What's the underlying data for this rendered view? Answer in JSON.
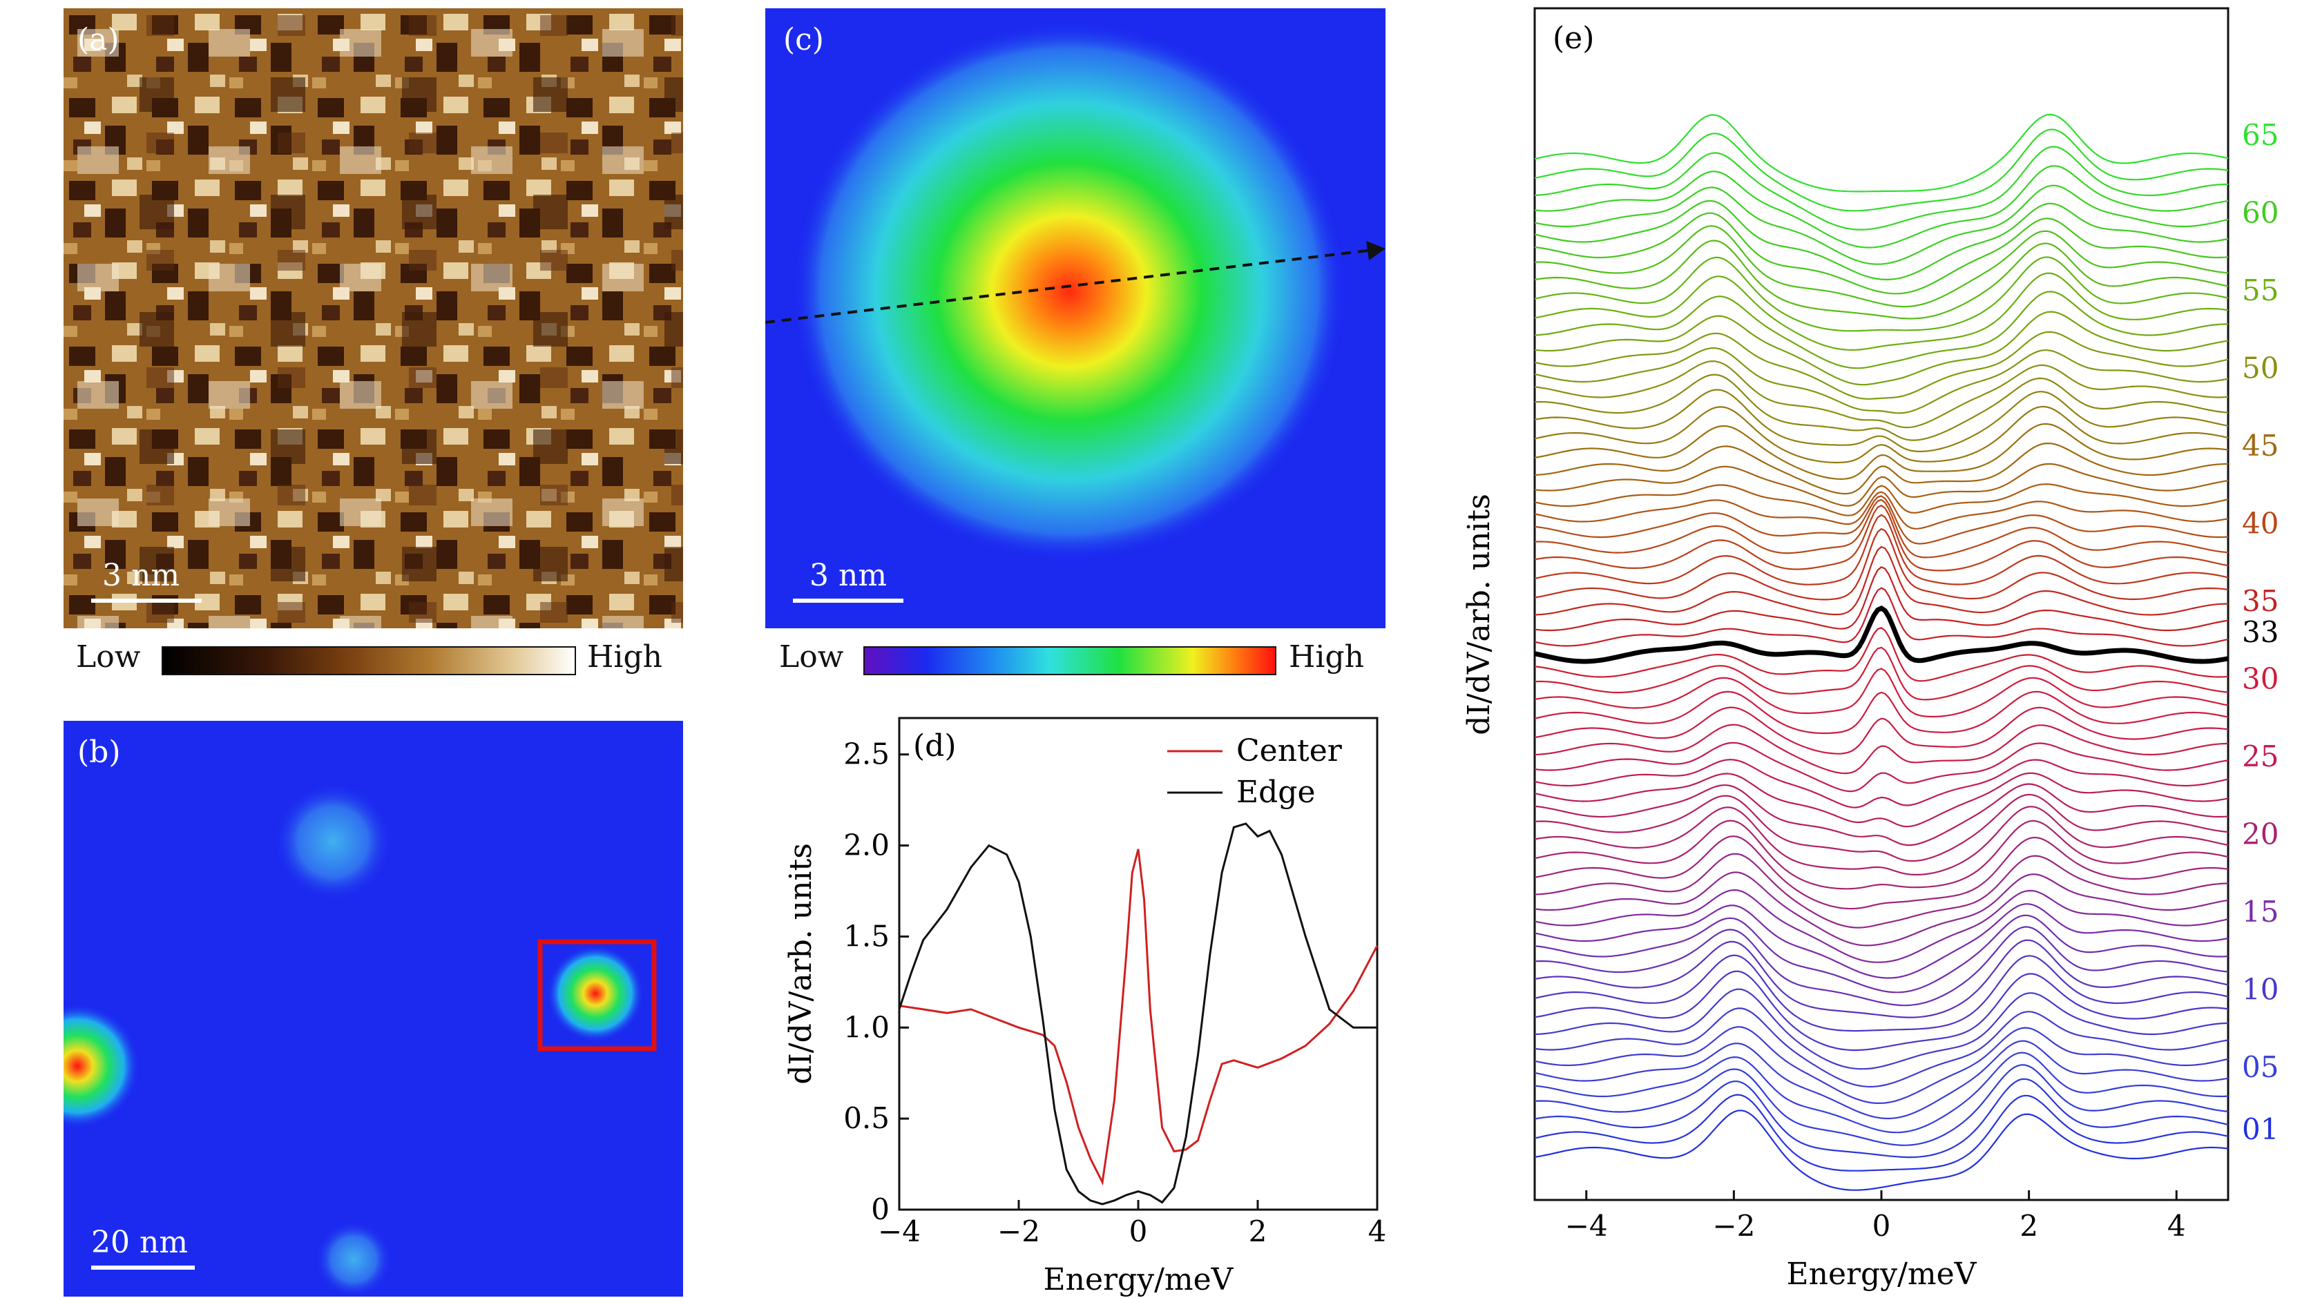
{
  "panels": {
    "a": {
      "label": "(a)",
      "scalebar": "3 nm",
      "colorbar": {
        "low": "Low",
        "high": "High"
      }
    },
    "b": {
      "label": "(b)",
      "scalebar": "20 nm"
    },
    "c": {
      "label": "(c)",
      "scalebar": "3 nm",
      "colorbar": {
        "low": "Low",
        "high": "High"
      }
    }
  },
  "colors": {
    "topo_dark": "#3a1a08",
    "topo_mid": "#9a6424",
    "topo_light": "#f2e4c8",
    "map_blue": "#1c2af0",
    "box_red": "#e01010",
    "center_line": "#d02020",
    "edge_line": "#111111"
  },
  "chart_data": [
    {
      "id": "d",
      "type": "line",
      "label": "(d)",
      "xlabel": "Energy/meV",
      "ylabel": "dI/dV/arb. units",
      "xlim": [
        -4,
        4
      ],
      "ylim": [
        0,
        2.7
      ],
      "xticks": [
        "−4",
        "−2",
        "0",
        "2",
        "4"
      ],
      "yticks": [
        "0",
        "0.5",
        "1.0",
        "1.5",
        "2.0",
        "2.5"
      ],
      "legend_position": "top-right",
      "series": [
        {
          "name": "Center",
          "color": "#d02020",
          "x": [
            -4,
            -3.6,
            -3.2,
            -2.8,
            -2.4,
            -2.0,
            -1.6,
            -1.4,
            -1.2,
            -1.0,
            -0.8,
            -0.6,
            -0.4,
            -0.2,
            -0.1,
            0,
            0.1,
            0.2,
            0.4,
            0.6,
            0.8,
            1.0,
            1.2,
            1.4,
            1.6,
            2.0,
            2.4,
            2.8,
            3.2,
            3.6,
            4.0
          ],
          "y": [
            1.12,
            1.1,
            1.08,
            1.1,
            1.05,
            1.0,
            0.96,
            0.9,
            0.7,
            0.45,
            0.28,
            0.15,
            0.6,
            1.4,
            1.85,
            1.98,
            1.7,
            1.1,
            0.45,
            0.32,
            0.33,
            0.38,
            0.6,
            0.8,
            0.82,
            0.78,
            0.83,
            0.9,
            1.02,
            1.2,
            1.45
          ]
        },
        {
          "name": "Edge",
          "color": "#111111",
          "x": [
            -4,
            -3.8,
            -3.6,
            -3.2,
            -2.8,
            -2.5,
            -2.2,
            -2.0,
            -1.8,
            -1.6,
            -1.4,
            -1.2,
            -1.0,
            -0.8,
            -0.6,
            -0.4,
            -0.2,
            0,
            0.2,
            0.4,
            0.6,
            0.8,
            1.0,
            1.2,
            1.4,
            1.6,
            1.8,
            2.0,
            2.2,
            2.4,
            2.8,
            3.2,
            3.6,
            4.0
          ],
          "y": [
            1.1,
            1.3,
            1.48,
            1.65,
            1.88,
            2.0,
            1.95,
            1.8,
            1.5,
            1.05,
            0.55,
            0.22,
            0.1,
            0.05,
            0.03,
            0.05,
            0.08,
            0.1,
            0.08,
            0.04,
            0.12,
            0.4,
            0.85,
            1.4,
            1.85,
            2.1,
            2.12,
            2.05,
            2.08,
            1.95,
            1.5,
            1.1,
            1.0,
            1.0
          ]
        }
      ]
    },
    {
      "id": "e",
      "type": "line",
      "label": "(e)",
      "xlabel": "Energy/meV",
      "ylabel": "dI/dV/arb. units",
      "xlim": [
        -4.7,
        4.7
      ],
      "xticks": [
        "−4",
        "−2",
        "0",
        "2",
        "4"
      ],
      "curve_count": 65,
      "highlighted_curve": 33,
      "curve_labels": [
        {
          "text": "01",
          "index": 1,
          "color": "#2030e0"
        },
        {
          "text": "05",
          "index": 5,
          "color": "#3640d8"
        },
        {
          "text": "10",
          "index": 10,
          "color": "#4838c8"
        },
        {
          "text": "15",
          "index": 15,
          "color": "#7a2aa8"
        },
        {
          "text": "20",
          "index": 20,
          "color": "#a82270"
        },
        {
          "text": "25",
          "index": 25,
          "color": "#c01c50"
        },
        {
          "text": "30",
          "index": 30,
          "color": "#d01c3c"
        },
        {
          "text": "33",
          "index": 33,
          "color": "#000000"
        },
        {
          "text": "35",
          "index": 35,
          "color": "#c42020"
        },
        {
          "text": "40",
          "index": 40,
          "color": "#b84818"
        },
        {
          "text": "45",
          "index": 45,
          "color": "#a06810"
        },
        {
          "text": "50",
          "index": 50,
          "color": "#8a9010"
        },
        {
          "text": "55",
          "index": 55,
          "color": "#6ab010"
        },
        {
          "text": "60",
          "index": 60,
          "color": "#40cc20"
        },
        {
          "text": "65",
          "index": 65,
          "color": "#30e030"
        }
      ]
    }
  ]
}
